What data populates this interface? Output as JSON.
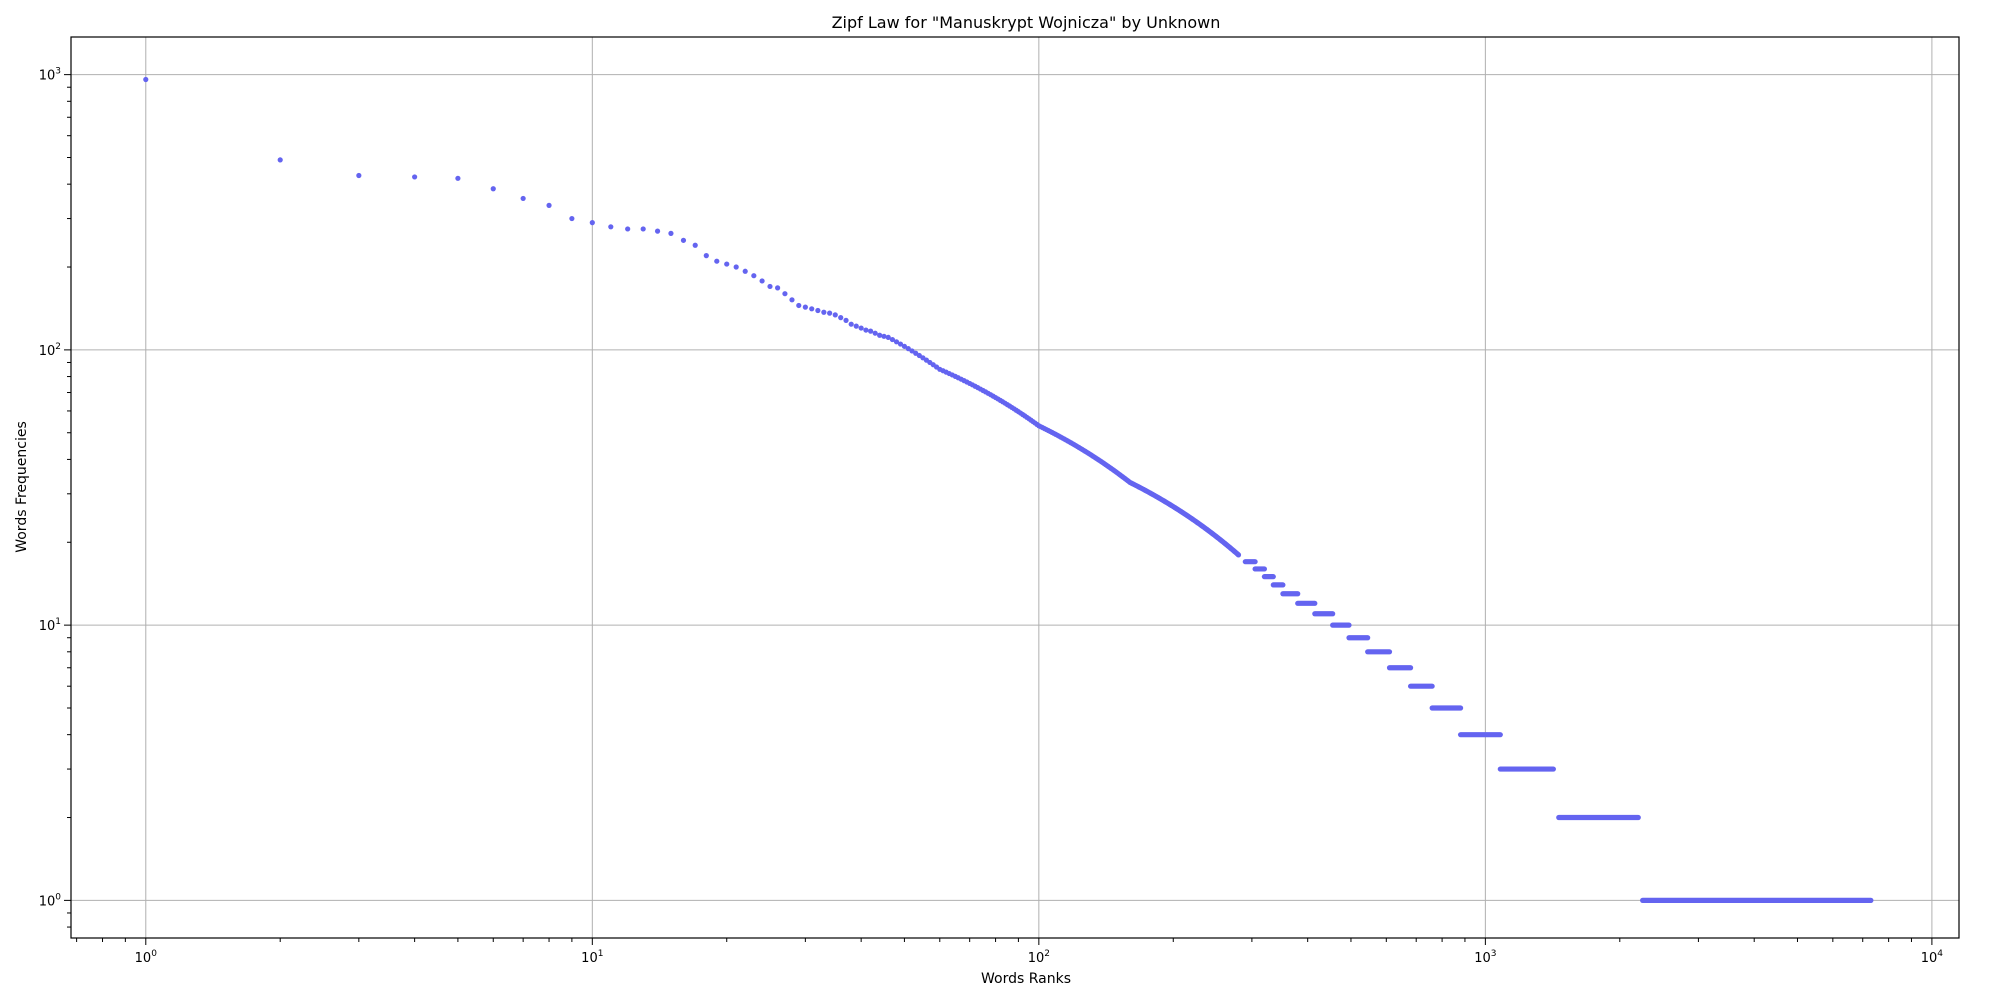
{
  "chart_data": {
    "type": "scatter",
    "title": "Zipf Law for \"Manuskrypt Wojnicza\" by Unknown",
    "xlabel": "Words Ranks",
    "ylabel": "Words Frequencies",
    "xscale": "log",
    "yscale": "log",
    "xlim": [
      0.68,
      11500
    ],
    "ylim": [
      0.73,
      1370
    ],
    "grid": true,
    "color": "#6464f0",
    "x_ticks": [
      {
        "value": 1,
        "base": "10",
        "exp": "0"
      },
      {
        "value": 10,
        "base": "10",
        "exp": "1"
      },
      {
        "value": 100,
        "base": "10",
        "exp": "2"
      },
      {
        "value": 1000,
        "base": "10",
        "exp": "3"
      },
      {
        "value": 10000,
        "base": "10",
        "exp": "4"
      }
    ],
    "y_ticks": [
      {
        "value": 1,
        "base": "10",
        "exp": "0"
      },
      {
        "value": 10,
        "base": "10",
        "exp": "1"
      },
      {
        "value": 100,
        "base": "10",
        "exp": "2"
      },
      {
        "value": 1000,
        "base": "10",
        "exp": "3"
      }
    ],
    "points": [
      [
        1,
        960
      ],
      [
        2,
        490
      ],
      [
        3,
        430
      ],
      [
        4,
        425
      ],
      [
        5,
        420
      ],
      [
        6,
        385
      ],
      [
        7,
        355
      ],
      [
        8,
        335
      ],
      [
        9,
        300
      ],
      [
        10,
        290
      ],
      [
        11,
        280
      ],
      [
        12,
        275
      ],
      [
        13,
        275
      ],
      [
        14,
        270
      ],
      [
        15,
        265
      ],
      [
        16,
        250
      ],
      [
        17,
        240
      ],
      [
        18,
        220
      ],
      [
        19,
        210
      ],
      [
        20,
        205
      ],
      [
        21,
        200
      ],
      [
        22,
        193
      ],
      [
        23,
        186
      ],
      [
        24,
        178
      ],
      [
        25,
        170
      ],
      [
        26,
        168
      ],
      [
        27,
        160
      ],
      [
        28,
        152
      ],
      [
        29,
        145
      ],
      [
        30,
        143
      ],
      [
        31,
        141
      ],
      [
        32,
        139
      ],
      [
        33,
        137
      ],
      [
        34,
        136
      ],
      [
        35,
        134
      ],
      [
        36,
        131
      ],
      [
        37,
        128
      ],
      [
        38,
        124
      ],
      [
        39,
        122
      ],
      [
        40,
        120
      ],
      [
        41,
        118
      ],
      [
        42,
        117
      ],
      [
        43,
        115
      ],
      [
        44,
        113
      ],
      [
        45,
        112
      ],
      [
        46,
        111
      ],
      [
        47,
        109
      ],
      [
        48,
        107
      ],
      [
        49,
        105
      ],
      [
        50,
        103
      ]
    ],
    "point_ranges": [
      {
        "x_from": 50,
        "x_to": 60,
        "y_from": 103,
        "y_to": 85
      },
      {
        "x_from": 60,
        "x_to": 100,
        "y_from": 85,
        "y_to": 53
      },
      {
        "x_from": 100,
        "x_to": 160,
        "y_from": 53,
        "y_to": 33
      },
      {
        "x_from": 160,
        "x_to": 280,
        "y_from": 33,
        "y_to": 18
      }
    ],
    "plateaus": [
      {
        "y": 17,
        "x_from": 290,
        "x_to": 305
      },
      {
        "y": 16,
        "x_from": 305,
        "x_to": 320
      },
      {
        "y": 15,
        "x_from": 320,
        "x_to": 335
      },
      {
        "y": 14,
        "x_from": 335,
        "x_to": 352
      },
      {
        "y": 13,
        "x_from": 352,
        "x_to": 380
      },
      {
        "y": 12,
        "x_from": 380,
        "x_to": 415
      },
      {
        "y": 11,
        "x_from": 415,
        "x_to": 455
      },
      {
        "y": 10,
        "x_from": 455,
        "x_to": 495
      },
      {
        "y": 9,
        "x_from": 495,
        "x_to": 545
      },
      {
        "y": 8,
        "x_from": 545,
        "x_to": 610
      },
      {
        "y": 7,
        "x_from": 610,
        "x_to": 680
      },
      {
        "y": 6,
        "x_from": 680,
        "x_to": 760
      },
      {
        "y": 5,
        "x_from": 760,
        "x_to": 880
      },
      {
        "y": 4,
        "x_from": 880,
        "x_to": 1080
      },
      {
        "y": 3,
        "x_from": 1080,
        "x_to": 1420
      },
      {
        "y": 2,
        "x_from": 1460,
        "x_to": 2200
      },
      {
        "y": 1,
        "x_from": 2250,
        "x_to": 7300
      }
    ]
  }
}
